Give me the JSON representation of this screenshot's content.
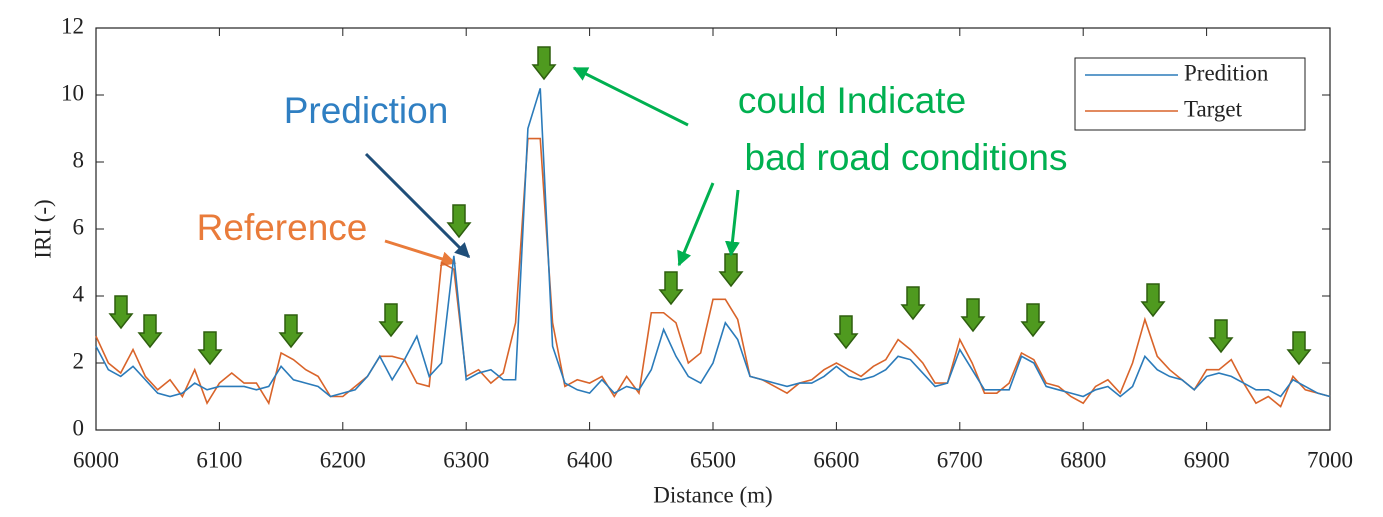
{
  "chart_data": {
    "type": "line",
    "x_label": "Distance (m)",
    "y_label": "IRI (-)",
    "xlim": [
      6000,
      7000
    ],
    "xticks": [
      6000,
      6100,
      6200,
      6300,
      6400,
      6500,
      6600,
      6700,
      6800,
      6900,
      7000
    ],
    "ylim": [
      0,
      12
    ],
    "yticks": [
      0,
      2,
      4,
      6,
      8,
      10,
      12
    ],
    "legend": "upper right",
    "annotations": [
      "Prediction",
      "Reference",
      "could Indicate",
      "bad road conditions"
    ],
    "x": [
      6000,
      6010,
      6020,
      6030,
      6040,
      6050,
      6060,
      6070,
      6080,
      6090,
      6100,
      6110,
      6120,
      6130,
      6140,
      6150,
      6160,
      6170,
      6180,
      6190,
      6200,
      6210,
      6220,
      6230,
      6240,
      6250,
      6260,
      6270,
      6280,
      6290,
      6300,
      6310,
      6320,
      6330,
      6340,
      6350,
      6360,
      6370,
      6380,
      6390,
      6400,
      6410,
      6420,
      6430,
      6440,
      6450,
      6460,
      6470,
      6480,
      6490,
      6500,
      6510,
      6520,
      6530,
      6540,
      6550,
      6560,
      6570,
      6580,
      6590,
      6600,
      6610,
      6620,
      6630,
      6640,
      6650,
      6660,
      6670,
      6680,
      6690,
      6700,
      6710,
      6720,
      6730,
      6740,
      6750,
      6760,
      6770,
      6780,
      6790,
      6800,
      6810,
      6820,
      6830,
      6840,
      6850,
      6860,
      6870,
      6880,
      6890,
      6900,
      6910,
      6920,
      6930,
      6940,
      6950,
      6960,
      6970,
      6980,
      6990,
      7000
    ],
    "series": [
      {
        "name": "Predition",
        "color": "#2b7bba",
        "values": [
          2.5,
          1.8,
          1.6,
          1.9,
          1.5,
          1.1,
          1.0,
          1.1,
          1.4,
          1.2,
          1.3,
          1.3,
          1.3,
          1.2,
          1.3,
          1.9,
          1.5,
          1.4,
          1.3,
          1.0,
          1.1,
          1.2,
          1.6,
          2.2,
          1.5,
          2.1,
          2.8,
          1.6,
          2.0,
          5.2,
          1.5,
          1.7,
          1.8,
          1.5,
          1.5,
          9.0,
          10.2,
          2.5,
          1.4,
          1.2,
          1.1,
          1.5,
          1.1,
          1.3,
          1.2,
          1.8,
          3.0,
          2.2,
          1.6,
          1.4,
          2.0,
          3.2,
          2.7,
          1.6,
          1.5,
          1.4,
          1.3,
          1.4,
          1.4,
          1.6,
          1.9,
          1.6,
          1.5,
          1.6,
          1.8,
          2.2,
          2.1,
          1.7,
          1.3,
          1.4,
          2.4,
          1.8,
          1.2,
          1.2,
          1.2,
          2.2,
          2.0,
          1.3,
          1.2,
          1.1,
          1.0,
          1.2,
          1.3,
          1.0,
          1.3,
          2.2,
          1.8,
          1.6,
          1.5,
          1.2,
          1.6,
          1.7,
          1.6,
          1.4,
          1.2,
          1.2,
          1.0,
          1.5,
          1.3,
          1.1,
          1.0
        ]
      },
      {
        "name": "Target",
        "color": "#d9642a",
        "values": [
          2.8,
          2.0,
          1.7,
          2.4,
          1.6,
          1.2,
          1.5,
          1.0,
          1.8,
          0.8,
          1.4,
          1.7,
          1.4,
          1.4,
          0.8,
          2.3,
          2.1,
          1.8,
          1.6,
          1.0,
          1.0,
          1.3,
          1.6,
          2.2,
          2.2,
          2.1,
          1.4,
          1.3,
          5.0,
          4.8,
          1.6,
          1.8,
          1.4,
          1.7,
          3.2,
          8.7,
          8.7,
          3.2,
          1.3,
          1.5,
          1.4,
          1.6,
          1.0,
          1.6,
          1.1,
          3.5,
          3.5,
          3.2,
          2.0,
          2.3,
          3.9,
          3.9,
          3.3,
          1.6,
          1.5,
          1.3,
          1.1,
          1.4,
          1.5,
          1.8,
          2.0,
          1.8,
          1.6,
          1.9,
          2.1,
          2.7,
          2.4,
          2.0,
          1.4,
          1.4,
          2.7,
          2.0,
          1.1,
          1.1,
          1.4,
          2.3,
          2.1,
          1.4,
          1.3,
          1.0,
          0.8,
          1.3,
          1.5,
          1.1,
          2.0,
          3.3,
          2.2,
          1.8,
          1.5,
          1.2,
          1.8,
          1.8,
          2.1,
          1.4,
          0.8,
          1.0,
          0.7,
          1.6,
          1.2,
          1.1,
          1.0
        ]
      }
    ]
  }
}
